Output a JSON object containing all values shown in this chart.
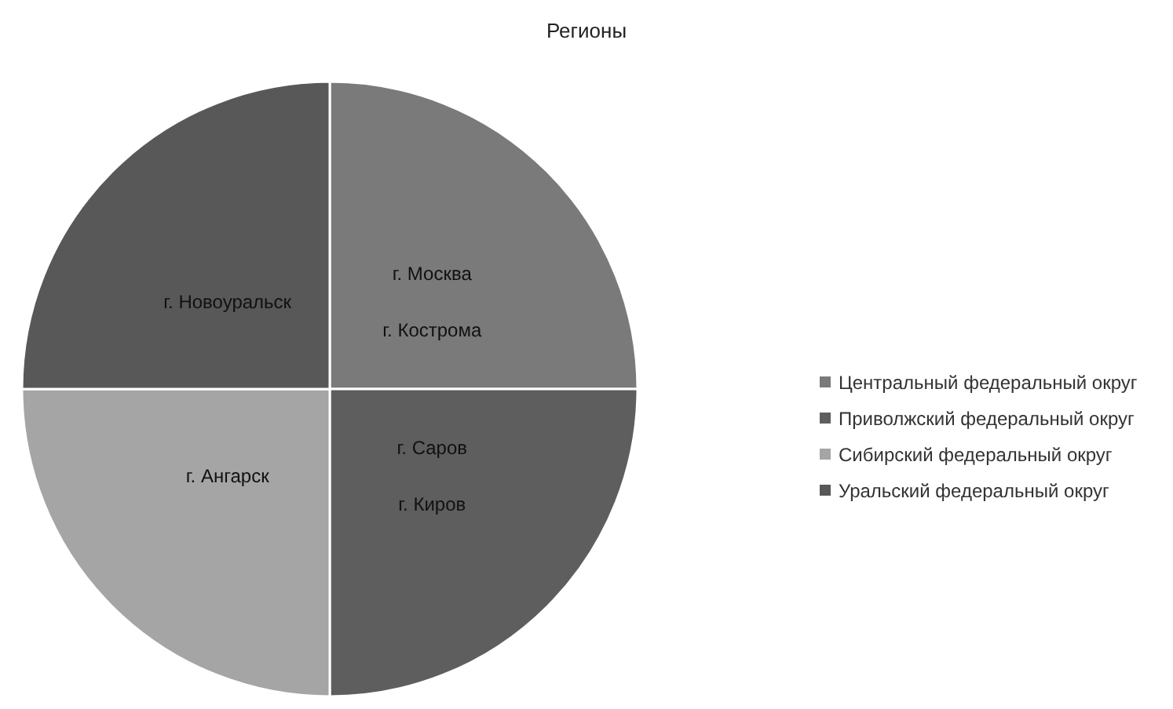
{
  "chart_data": {
    "type": "pie",
    "title": "Регионы",
    "categories": [
      "Центральный федеральный округ",
      "Приволжский федеральный округ",
      "Сибирский федеральный округ",
      "Уральский федеральный округ"
    ],
    "values": [
      25,
      25,
      25,
      25
    ],
    "colors": [
      "#7a7a7a",
      "#5e5e5e",
      "#a5a5a5",
      "#585858"
    ],
    "legend": "right",
    "annotations": [
      {
        "text": "г. Москва",
        "x": "Центральный федеральный округ"
      },
      {
        "text": "г. Кострома",
        "x": "Центральный федеральный округ"
      },
      {
        "text": "г. Саров",
        "x": "Приволжский федеральный округ"
      },
      {
        "text": "г. Киров",
        "x": "Приволжский федеральный округ"
      },
      {
        "text": "г. Ангарск",
        "x": "Сибирский федеральный округ"
      },
      {
        "text": "г. Новоуральск",
        "x": "Уральский федеральный округ"
      }
    ]
  }
}
